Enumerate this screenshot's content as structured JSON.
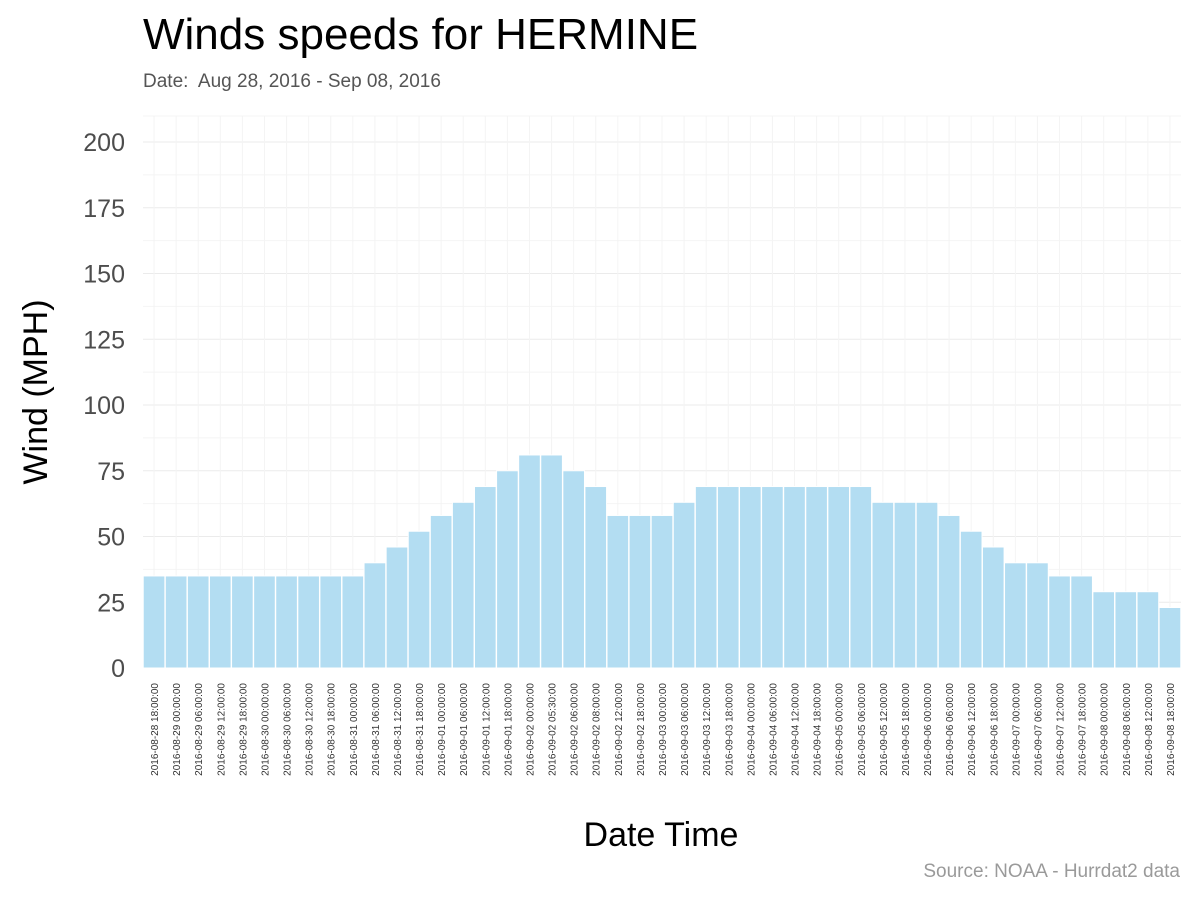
{
  "chart_data": {
    "type": "bar",
    "title": "Winds speeds for HERMINE",
    "subtitle": "Date:  Aug 28, 2016 - Sep 08, 2016",
    "caption": "Source: NOAA - Hurrdat2 data",
    "xlabel": "Date Time",
    "ylabel": "Wind (MPH)",
    "ylim": [
      0,
      200
    ],
    "yticks": [
      "0",
      "25",
      "50",
      "75",
      "100",
      "125",
      "150",
      "175",
      "200"
    ],
    "grid": true,
    "bar_color": "#b3ddf2",
    "categories": [
      "2016-08-28 18:00:00",
      "2016-08-29 00:00:00",
      "2016-08-29 06:00:00",
      "2016-08-29 12:00:00",
      "2016-08-29 18:00:00",
      "2016-08-30 00:00:00",
      "2016-08-30 06:00:00",
      "2016-08-30 12:00:00",
      "2016-08-30 18:00:00",
      "2016-08-31 00:00:00",
      "2016-08-31 06:00:00",
      "2016-08-31 12:00:00",
      "2016-08-31 18:00:00",
      "2016-09-01 00:00:00",
      "2016-09-01 06:00:00",
      "2016-09-01 12:00:00",
      "2016-09-01 18:00:00",
      "2016-09-02 00:00:00",
      "2016-09-02 05:30:00",
      "2016-09-02 06:00:00",
      "2016-09-02 08:00:00",
      "2016-09-02 12:00:00",
      "2016-09-02 18:00:00",
      "2016-09-03 00:00:00",
      "2016-09-03 06:00:00",
      "2016-09-03 12:00:00",
      "2016-09-03 18:00:00",
      "2016-09-04 00:00:00",
      "2016-09-04 06:00:00",
      "2016-09-04 12:00:00",
      "2016-09-04 18:00:00",
      "2016-09-05 00:00:00",
      "2016-09-05 06:00:00",
      "2016-09-05 12:00:00",
      "2016-09-05 18:00:00",
      "2016-09-06 00:00:00",
      "2016-09-06 06:00:00",
      "2016-09-06 12:00:00",
      "2016-09-06 18:00:00",
      "2016-09-07 00:00:00",
      "2016-09-07 06:00:00",
      "2016-09-07 12:00:00",
      "2016-09-07 18:00:00",
      "2016-09-08 00:00:00",
      "2016-09-08 06:00:00",
      "2016-09-08 12:00:00",
      "2016-09-08 18:00:00"
    ],
    "values": [
      35,
      35,
      35,
      35,
      35,
      35,
      35,
      35,
      35,
      35,
      40,
      46,
      52,
      58,
      63,
      69,
      75,
      81,
      81,
      75,
      69,
      58,
      58,
      58,
      63,
      69,
      69,
      69,
      69,
      69,
      69,
      69,
      69,
      63,
      63,
      63,
      58,
      52,
      46,
      40,
      40,
      35,
      35,
      29,
      29,
      29,
      23
    ]
  }
}
